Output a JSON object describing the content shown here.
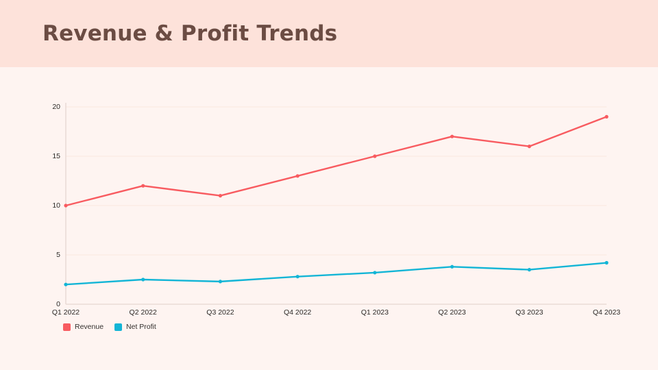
{
  "header": {
    "title": "Revenue & Profit Trends"
  },
  "chart_data": {
    "type": "line",
    "title": "Revenue & Profit Trends",
    "categories": [
      "Q1 2022",
      "Q2 2022",
      "Q3 2022",
      "Q4 2022",
      "Q1 2023",
      "Q2 2023",
      "Q3 2023",
      "Q4 2023"
    ],
    "series": [
      {
        "name": "Revenue",
        "color": "#f85b60",
        "values": [
          10,
          12,
          11,
          13,
          15,
          17,
          16,
          19
        ]
      },
      {
        "name": "Net Profit",
        "color": "#12b5d6",
        "values": [
          2,
          2.5,
          2.3,
          2.8,
          3.2,
          3.8,
          3.5,
          4.2
        ]
      }
    ],
    "xlabel": "",
    "ylabel": "",
    "ylim": [
      0,
      20
    ],
    "yticks": [
      "0",
      "5",
      "10",
      "15",
      "20"
    ],
    "grid": true,
    "legend_position": "bottom-left"
  },
  "colors": {
    "header_band": "#fde2da",
    "background": "#fef4f1",
    "title_text": "#6b4c43",
    "axis_line": "#e6d6d1",
    "gridline": "#fbe9e4",
    "tick_text": "#2b2927",
    "revenue": "#f85b60",
    "net_profit": "#12b5d6"
  }
}
